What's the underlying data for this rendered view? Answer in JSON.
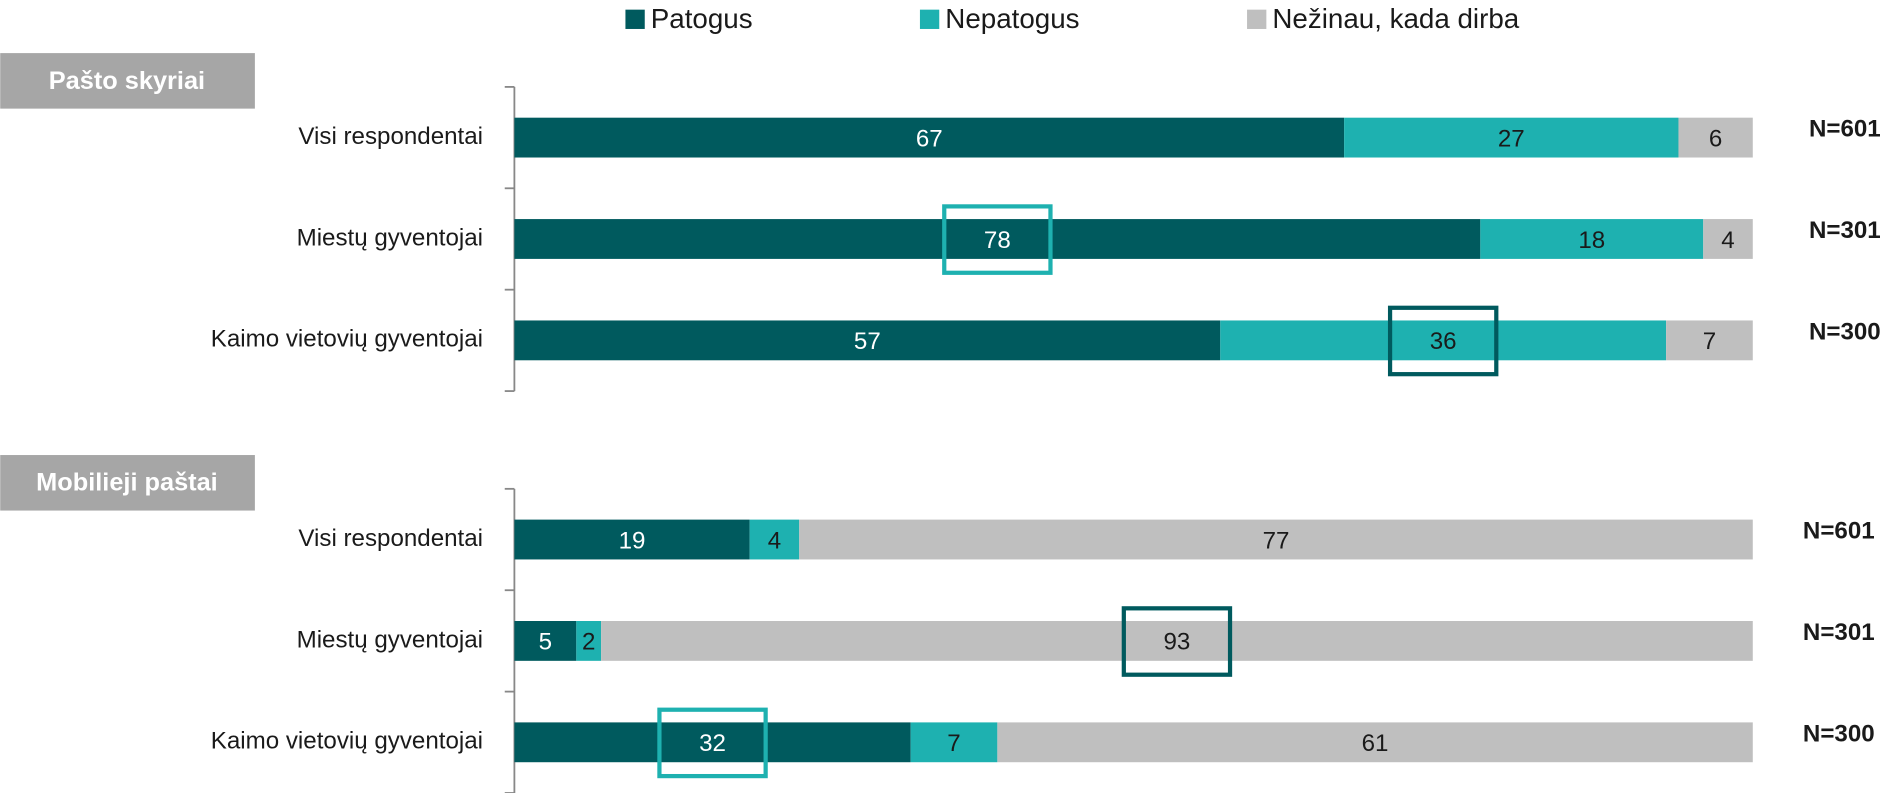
{
  "chart_data": {
    "type": "bar",
    "orientation": "horizontal",
    "stacked": true,
    "xlim": [
      0,
      100
    ],
    "groups": [
      {
        "title": "Pašto skyriai",
        "categories": [
          "Visi respondentai",
          "Miestų gyventojai",
          "Kaimo vietovių gyventojai"
        ],
        "annotations": [
          "N=601",
          "N=301",
          "N=300"
        ]
      },
      {
        "title": "Mobilieji paštai",
        "categories": [
          "Visi respondentai",
          "Miestų gyventojai",
          "Kaimo vietovių gyventojai"
        ],
        "annotations": [
          "N=601",
          "N=301",
          "N=300"
        ]
      }
    ],
    "series": [
      {
        "name": "Patogus",
        "color": "#005a5e",
        "label_color": "#ffffff",
        "values": [
          67,
          78,
          57,
          19,
          5,
          32
        ]
      },
      {
        "name": "Nepatogus",
        "color": "#1eb1b0",
        "label_color": "#1a1a1a",
        "values": [
          27,
          18,
          36,
          4,
          2,
          7
        ]
      },
      {
        "name": "Nežinau, kada dirba",
        "color": "#bfbfbf",
        "label_color": "#1a1a1a",
        "values": [
          6,
          4,
          7,
          77,
          93,
          61
        ]
      }
    ],
    "highlights": [
      {
        "series": 0,
        "row": 1,
        "color": "#1eb1b0"
      },
      {
        "series": 1,
        "row": 2,
        "color": "#005a5e"
      },
      {
        "series": 2,
        "row": 4,
        "color": "#005a5e"
      },
      {
        "series": 0,
        "row": 5,
        "color": "#1eb1b0"
      }
    ]
  }
}
